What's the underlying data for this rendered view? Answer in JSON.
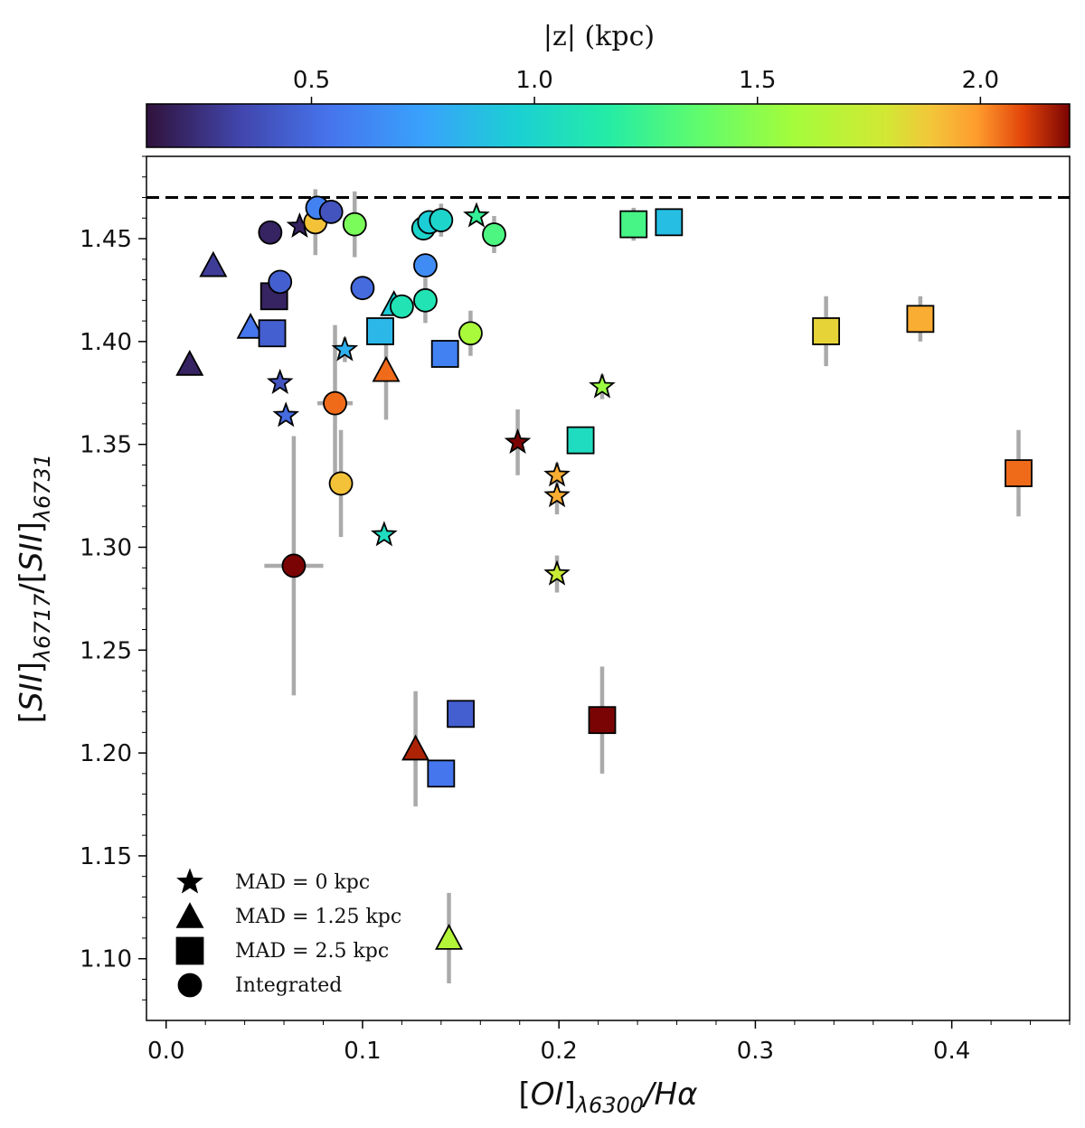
{
  "chart_data": {
    "type": "scatter",
    "title": "",
    "xlabel": {
      "pre": "[",
      "main": "OI",
      "mid": "]",
      "sub": "λ6300",
      "post": "/Hα"
    },
    "ylabel": {
      "pre": "[",
      "main": "SII",
      "mid": "]",
      "sub1": "λ6717",
      "slash": "/[",
      "main2": "SII",
      "mid2": "]",
      "sub2": "λ6731"
    },
    "xlim": [
      -0.01,
      0.46
    ],
    "ylim": [
      1.07,
      1.49
    ],
    "xticks": [
      0.0,
      0.1,
      0.2,
      0.3,
      0.4
    ],
    "xtick_labels": [
      "0.0",
      "0.1",
      "0.2",
      "0.3",
      "0.4"
    ],
    "yticks": [
      1.1,
      1.15,
      1.2,
      1.25,
      1.3,
      1.35,
      1.4,
      1.45
    ],
    "ytick_labels": [
      "1.10",
      "1.15",
      "1.20",
      "1.25",
      "1.30",
      "1.35",
      "1.40",
      "1.45"
    ],
    "reference_line": {
      "y": 1.47,
      "style": "dashed"
    },
    "colorbar": {
      "label": "|z| (kpc)",
      "range": [
        0.13,
        2.2
      ],
      "ticks": [
        0.5,
        1.0,
        1.5,
        2.0
      ],
      "tick_labels": [
        "0.5",
        "1.0",
        "1.5",
        "2.0"
      ],
      "colormap": "turbo"
    },
    "legend": {
      "location": "lower-left",
      "entries": [
        {
          "marker": "star",
          "label": "MAD = 0 kpc"
        },
        {
          "marker": "triangle",
          "label": "MAD = 1.25 kpc"
        },
        {
          "marker": "square",
          "label": "MAD = 2.5 kpc"
        },
        {
          "marker": "circle",
          "label": "Integrated"
        }
      ]
    },
    "series": [
      {
        "marker": "star",
        "points": [
          {
            "x": 0.068,
            "y": 1.456,
            "z": 0.2
          },
          {
            "x": 0.058,
            "y": 1.38,
            "z": 0.4
          },
          {
            "x": 0.061,
            "y": 1.364,
            "z": 0.5
          },
          {
            "x": 0.091,
            "y": 1.396,
            "z": 0.82,
            "yerr": 0.006
          },
          {
            "x": 0.111,
            "y": 1.306,
            "z": 1.05
          },
          {
            "x": 0.158,
            "y": 1.461,
            "z": 1.22
          },
          {
            "x": 0.222,
            "y": 1.378,
            "z": 1.55,
            "yerr": 0.006
          },
          {
            "x": 0.179,
            "y": 1.351,
            "z": 2.2,
            "yerr": 0.016
          },
          {
            "x": 0.199,
            "y": 1.335,
            "z": 1.95,
            "yerr": 0.006
          },
          {
            "x": 0.199,
            "y": 1.325,
            "z": 1.95,
            "yerr": 0.009
          },
          {
            "x": 0.199,
            "y": 1.287,
            "z": 1.75,
            "yerr": 0.009
          }
        ]
      },
      {
        "marker": "triangle",
        "points": [
          {
            "x": 0.024,
            "y": 1.437,
            "z": 0.3
          },
          {
            "x": 0.012,
            "y": 1.389,
            "z": 0.2
          },
          {
            "x": 0.043,
            "y": 1.407,
            "z": 0.55
          },
          {
            "x": 0.116,
            "y": 1.418,
            "z": 0.95
          },
          {
            "x": 0.112,
            "y": 1.386,
            "z": 2.05,
            "yerr": 0.024
          },
          {
            "x": 0.127,
            "y": 1.202,
            "z": 2.15,
            "yerr": 0.028
          },
          {
            "x": 0.144,
            "y": 1.11,
            "z": 1.65,
            "yerr": 0.022
          }
        ]
      },
      {
        "marker": "square",
        "points": [
          {
            "x": 0.055,
            "y": 1.422,
            "z": 0.2
          },
          {
            "x": 0.054,
            "y": 1.404,
            "z": 0.45
          },
          {
            "x": 0.109,
            "y": 1.405,
            "z": 0.85
          },
          {
            "x": 0.142,
            "y": 1.394,
            "z": 0.6
          },
          {
            "x": 0.15,
            "y": 1.219,
            "z": 0.45
          },
          {
            "x": 0.14,
            "y": 1.19,
            "z": 0.55
          },
          {
            "x": 0.211,
            "y": 1.352,
            "z": 1.05
          },
          {
            "x": 0.222,
            "y": 1.216,
            "z": 2.2,
            "yerr": 0.026
          },
          {
            "x": 0.238,
            "y": 1.457,
            "z": 1.28,
            "yerr": 0.008
          },
          {
            "x": 0.256,
            "y": 1.458,
            "z": 0.88
          },
          {
            "x": 0.336,
            "y": 1.405,
            "z": 1.85,
            "yerr": 0.017
          },
          {
            "x": 0.384,
            "y": 1.411,
            "z": 1.95,
            "yerr": 0.011
          },
          {
            "x": 0.434,
            "y": 1.336,
            "z": 2.05,
            "yerr": 0.021
          }
        ]
      },
      {
        "marker": "circle",
        "points": [
          {
            "x": 0.053,
            "y": 1.453,
            "z": 0.2
          },
          {
            "x": 0.076,
            "y": 1.458,
            "z": 1.9,
            "yerr": 0.016
          },
          {
            "x": 0.077,
            "y": 1.465,
            "z": 0.6
          },
          {
            "x": 0.084,
            "y": 1.463,
            "z": 0.4
          },
          {
            "x": 0.096,
            "y": 1.457,
            "z": 1.45,
            "yerr": 0.016
          },
          {
            "x": 0.058,
            "y": 1.429,
            "z": 0.45
          },
          {
            "x": 0.1,
            "y": 1.426,
            "z": 0.5
          },
          {
            "x": 0.12,
            "y": 1.417,
            "z": 1.1
          },
          {
            "x": 0.131,
            "y": 1.455,
            "z": 1.0
          },
          {
            "x": 0.134,
            "y": 1.458,
            "z": 0.95
          },
          {
            "x": 0.14,
            "y": 1.459,
            "z": 1.0,
            "yerr": 0.008
          },
          {
            "x": 0.167,
            "y": 1.452,
            "z": 1.3,
            "yerr": 0.009
          },
          {
            "x": 0.132,
            "y": 1.437,
            "z": 0.65
          },
          {
            "x": 0.132,
            "y": 1.42,
            "z": 1.1,
            "yerr": 0.011
          },
          {
            "x": 0.155,
            "y": 1.404,
            "z": 1.6,
            "yerr": 0.011
          },
          {
            "x": 0.086,
            "y": 1.37,
            "z": 2.05,
            "yerr": 0.038,
            "xerr": 0.009
          },
          {
            "x": 0.089,
            "y": 1.331,
            "z": 1.9,
            "yerr": 0.026
          },
          {
            "x": 0.065,
            "y": 1.291,
            "z": 2.2,
            "yerr": 0.063,
            "xerr": 0.015
          }
        ]
      }
    ]
  }
}
